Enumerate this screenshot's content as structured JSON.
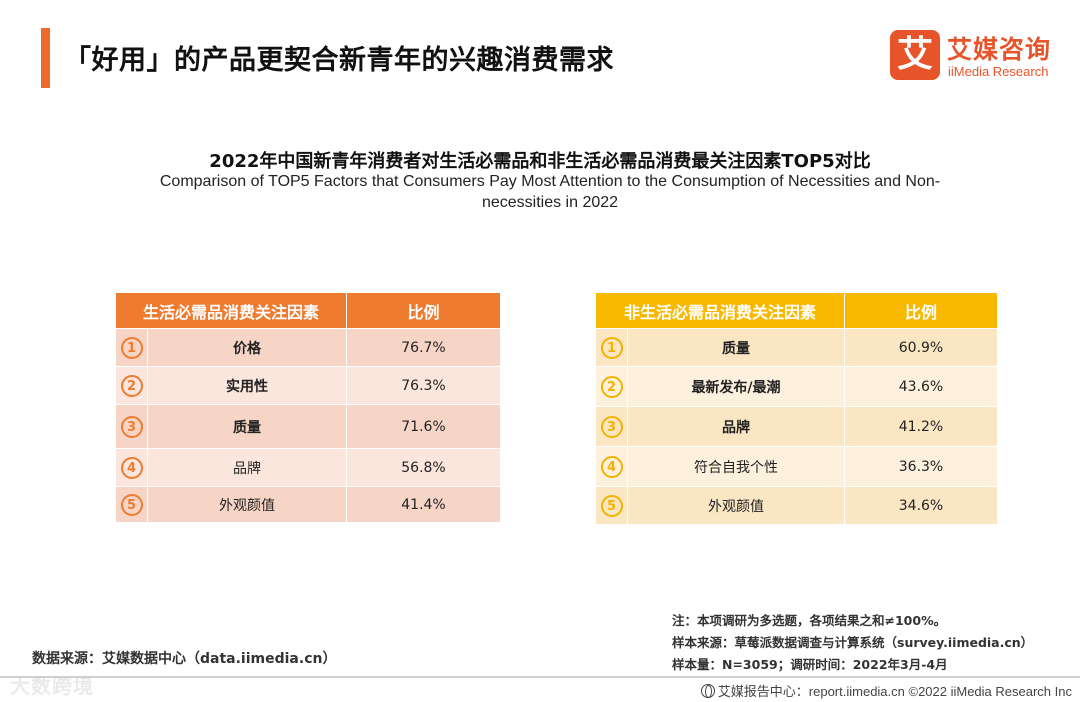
{
  "page": {
    "title": "「好用」的产品更契合新青年的兴趣消费需求"
  },
  "logo": {
    "mark": "艾",
    "name_cn": "艾媒咨询",
    "name_en": "iiMedia Research"
  },
  "chart": {
    "title_cn": "2022年中国新青年消费者对生活必需品和非生活必需品消费最关注因素TOP5对比",
    "title_en": "Comparison of TOP5 Factors that Consumers Pay Most Attention to the Consumption of Necessities and Non-necessities in 2022"
  },
  "table_left": {
    "header_factor": "生活必需品消费关注因素",
    "header_ratio": "比例",
    "rows": [
      {
        "rank": "1",
        "factor": "价格",
        "ratio": "76.7%"
      },
      {
        "rank": "2",
        "factor": "实用性",
        "ratio": "76.3%"
      },
      {
        "rank": "3",
        "factor": "质量",
        "ratio": "71.6%"
      },
      {
        "rank": "4",
        "factor": "品牌",
        "ratio": "56.8%"
      },
      {
        "rank": "5",
        "factor": "外观颜值",
        "ratio": "41.4%"
      }
    ]
  },
  "table_right": {
    "header_factor": "非生活必需品消费关注因素",
    "header_ratio": "比例",
    "rows": [
      {
        "rank": "1",
        "factor": "质量",
        "ratio": "60.9%"
      },
      {
        "rank": "2",
        "factor": "最新发布/最潮",
        "ratio": "43.6%"
      },
      {
        "rank": "3",
        "factor": "品牌",
        "ratio": "41.2%"
      },
      {
        "rank": "4",
        "factor": "符合自我个性",
        "ratio": "36.3%"
      },
      {
        "rank": "5",
        "factor": "外观颜值",
        "ratio": "34.6%"
      }
    ]
  },
  "notes": {
    "note": "注：本项调研为多选题，各项结果之和≠100%。",
    "sample_source": "样本来源：草莓派数据调查与计算系统（survey.iimedia.cn）",
    "sample_size": "样本量：N=3059；调研时间：2022年3月-4月"
  },
  "source": "数据来源：艾媒数据中心（data.iimedia.cn）",
  "footer": "艾媒报告中心：report.iimedia.cn  ©2022  iiMedia Research  Inc",
  "watermark": "大数跨境",
  "colors": {
    "accent": "#ee6a2c",
    "left_header": "#ee7b30",
    "right_header": "#f8b900"
  }
}
